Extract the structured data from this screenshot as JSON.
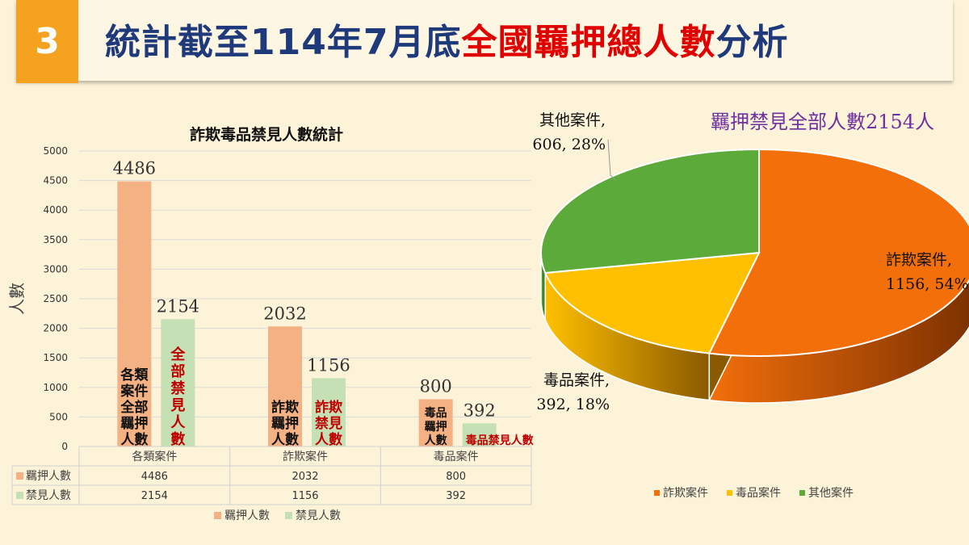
{
  "header": {
    "number": "3",
    "title_prefix": "統計截至114年7月底",
    "title_highlight": "全國羈押總人數",
    "title_suffix": "分析"
  },
  "colors": {
    "detain": "#f4b183",
    "banned": "#c5e0b4",
    "pie_fraud": "#f36f0a",
    "pie_drug": "#ffc000",
    "pie_other": "#5cab3a",
    "title_blue": "#1f3a7a",
    "highlight_red": "#e00000",
    "label_red": "#c00000",
    "pie_title": "#7030a0"
  },
  "chart_data": [
    {
      "type": "bar",
      "title": "詐欺毒品禁見人數統計",
      "ylabel": "人數",
      "xlabel": "",
      "ylim": [
        0,
        5000
      ],
      "yticks": [
        "0",
        "500",
        "1000",
        "1500",
        "2000",
        "2500",
        "3000",
        "3500",
        "4000",
        "4500",
        "5000"
      ],
      "categories": [
        "各類案件",
        "詐欺案件",
        "毒品案件"
      ],
      "series": [
        {
          "name": "羈押人數",
          "values": [
            4486,
            2032,
            800
          ]
        },
        {
          "name": "禁見人數",
          "values": [
            2154,
            1156,
            392
          ]
        }
      ],
      "bar_annotations": [
        {
          "text": [
            "各類",
            "案件",
            "全部",
            "羈押",
            "人數"
          ]
        },
        {
          "text": [
            "全",
            "部",
            "禁",
            "見",
            "人",
            "數"
          ]
        },
        {
          "text": [
            "詐欺",
            "羈押",
            "人數"
          ]
        },
        {
          "text": [
            "詐欺",
            "禁見",
            "人數"
          ]
        },
        {
          "text": [
            "毒品",
            "羈押",
            "人數"
          ]
        },
        {
          "text": [
            "毒品禁見人數"
          ]
        }
      ],
      "table": {
        "rows": [
          {
            "label": "羈押人數",
            "values": [
              "4486",
              "2032",
              "800"
            ]
          },
          {
            "label": "禁見人數",
            "values": [
              "2154",
              "1156",
              "392"
            ]
          }
        ]
      },
      "legend": [
        "羈押人數",
        "禁見人數"
      ],
      "legend_position": "bottom"
    },
    {
      "type": "pie",
      "title": "羈押禁見全部人數2154人",
      "slices": [
        {
          "name": "詐欺案件",
          "value": 1156,
          "percent": "54%",
          "label_line1": "詐欺案件,",
          "label_line2": "1156, 54%"
        },
        {
          "name": "毒品案件",
          "value": 392,
          "percent": "18%",
          "label_line1": "毒品案件,",
          "label_line2": "392, 18%"
        },
        {
          "name": "其他案件",
          "value": 606,
          "percent": "28%",
          "label_line1": "其他案件,",
          "label_line2": "606, 28%"
        }
      ],
      "legend": [
        "詐欺案件",
        "毒品案件",
        "其他案件"
      ],
      "legend_position": "bottom"
    }
  ]
}
